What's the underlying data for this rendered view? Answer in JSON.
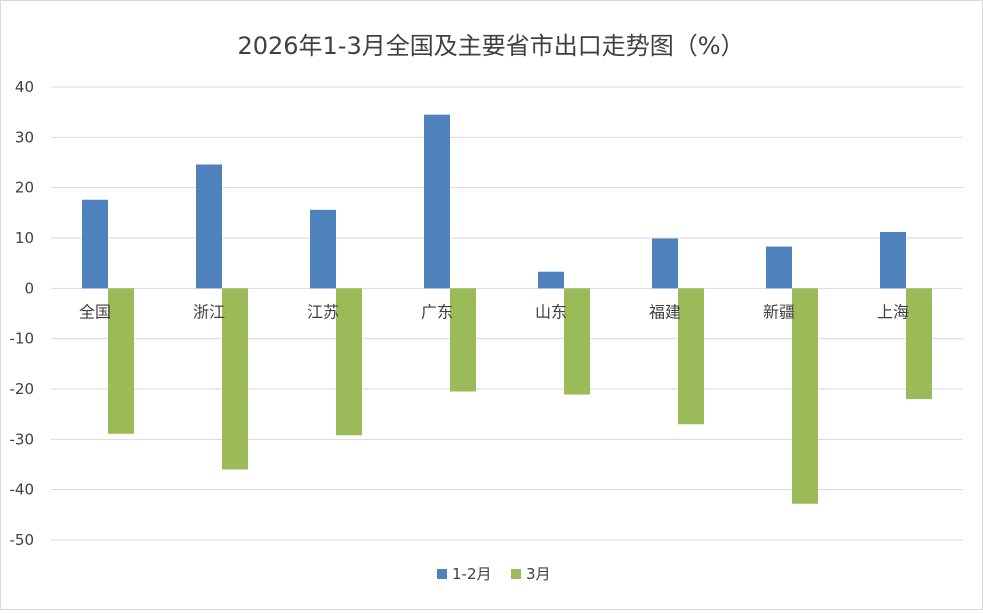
{
  "chart_data": {
    "type": "bar",
    "title": "2026年1-3月全国及主要省市出口走势图（%）",
    "categories": [
      "全国",
      "浙江",
      "江苏",
      "广东",
      "山东",
      "福建",
      "新疆",
      "上海"
    ],
    "series": [
      {
        "name": "1-2月",
        "color": "#4f81bd",
        "values": [
          17.6,
          24.6,
          15.6,
          34.5,
          3.3,
          9.9,
          8.3,
          11.2
        ]
      },
      {
        "name": "3月",
        "color": "#9bbb59",
        "values": [
          -28.9,
          -36.0,
          -29.2,
          -20.5,
          -21.1,
          -27.0,
          -42.8,
          -22.0
        ]
      }
    ],
    "xlabel": "",
    "ylabel": "",
    "ylim": [
      -50,
      40
    ],
    "yticks": [
      40,
      30,
      20,
      10,
      0,
      -10,
      -20,
      -30,
      -40,
      -50
    ],
    "grid": true,
    "gridColor": "#d9d9d9",
    "legend": "bottom"
  }
}
